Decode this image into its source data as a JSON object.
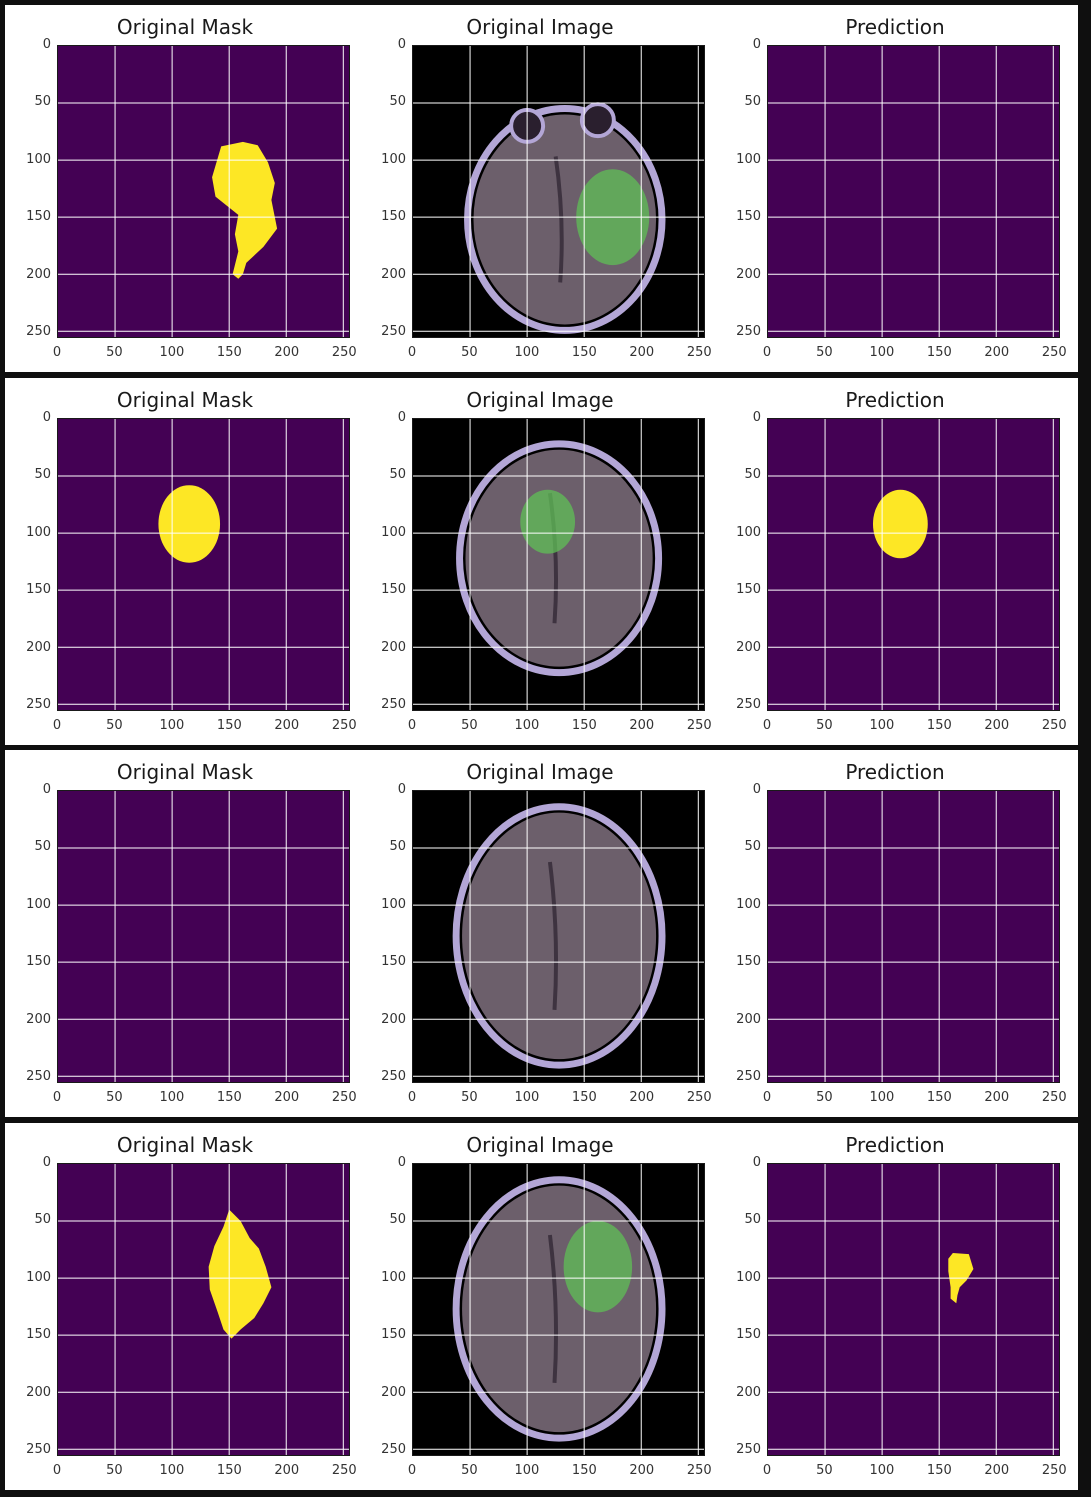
{
  "colors": {
    "background": "#440154",
    "mask": "#fde725",
    "grid": "#ffffff",
    "scan_black": "#000000",
    "brain_tissue": "#6c5f6b",
    "skull": "#b3a6d6",
    "tumor_green": "#5fbf55"
  },
  "chart_data": {
    "type": "heatmap",
    "panel_titles": [
      "Original Mask",
      "Original Image",
      "Prediction"
    ],
    "x_ticks": [
      "0",
      "50",
      "100",
      "150",
      "200",
      "250"
    ],
    "y_ticks": [
      "0",
      "50",
      "100",
      "150",
      "200",
      "250"
    ],
    "xlim": [
      0,
      255
    ],
    "ylim": [
      255,
      0
    ],
    "grid": true,
    "samples": [
      {
        "original_mask": [
          {
            "kind": "polygon",
            "points": [
              [
                143,
                88
              ],
              [
                162,
                84
              ],
              [
                175,
                87
              ],
              [
                184,
                102
              ],
              [
                190,
                120
              ],
              [
                187,
                135
              ],
              [
                192,
                160
              ],
              [
                180,
                176
              ],
              [
                165,
                190
              ],
              [
                162,
                200
              ],
              [
                158,
                204
              ],
              [
                153,
                200
              ],
              [
                158,
                180
              ],
              [
                155,
                165
              ],
              [
                158,
                148
              ],
              [
                148,
                140
              ],
              [
                138,
                132
              ],
              [
                135,
                115
              ]
            ]
          }
        ],
        "original_image": {
          "brain": {
            "cx": 133,
            "cy": 152,
            "rx": 80,
            "ry": 92
          },
          "tumor": {
            "cx": 175,
            "cy": 150,
            "rx": 32,
            "ry": 42
          },
          "orbits": [
            [
              100,
              70
            ],
            [
              162,
              65
            ]
          ]
        },
        "prediction": []
      },
      {
        "original_mask": [
          {
            "kind": "ellipse",
            "cx": 115,
            "cy": 92,
            "rx": 27,
            "ry": 34
          }
        ],
        "original_image": {
          "brain": {
            "cx": 128,
            "cy": 122,
            "rx": 82,
            "ry": 95
          },
          "tumor": {
            "cx": 118,
            "cy": 90,
            "rx": 24,
            "ry": 28
          }
        },
        "prediction": [
          {
            "kind": "ellipse",
            "cx": 116,
            "cy": 92,
            "rx": 24,
            "ry": 30
          }
        ]
      },
      {
        "original_mask": [],
        "original_image": {
          "brain": {
            "cx": 128,
            "cy": 127,
            "rx": 85,
            "ry": 108
          }
        },
        "prediction": []
      },
      {
        "original_mask": [
          {
            "kind": "polygon",
            "points": [
              [
                150,
                40
              ],
              [
                160,
                50
              ],
              [
                168,
                65
              ],
              [
                176,
                74
              ],
              [
                182,
                90
              ],
              [
                187,
                108
              ],
              [
                180,
                122
              ],
              [
                172,
                135
              ],
              [
                160,
                145
              ],
              [
                152,
                153
              ],
              [
                145,
                145
              ],
              [
                140,
                130
              ],
              [
                133,
                110
              ],
              [
                132,
                90
              ],
              [
                137,
                72
              ],
              [
                145,
                55
              ]
            ]
          }
        ],
        "original_image": {
          "brain": {
            "cx": 128,
            "cy": 127,
            "rx": 85,
            "ry": 108
          },
          "tumor": {
            "cx": 162,
            "cy": 90,
            "rx": 30,
            "ry": 40
          }
        },
        "prediction": [
          {
            "kind": "polygon",
            "points": [
              [
                162,
                78
              ],
              [
                176,
                79
              ],
              [
                180,
                92
              ],
              [
                174,
                102
              ],
              [
                168,
                108
              ],
              [
                166,
                115
              ],
              [
                165,
                122
              ],
              [
                160,
                118
              ],
              [
                160,
                108
              ],
              [
                158,
                94
              ],
              [
                158,
                83
              ]
            ]
          }
        ]
      }
    ]
  }
}
